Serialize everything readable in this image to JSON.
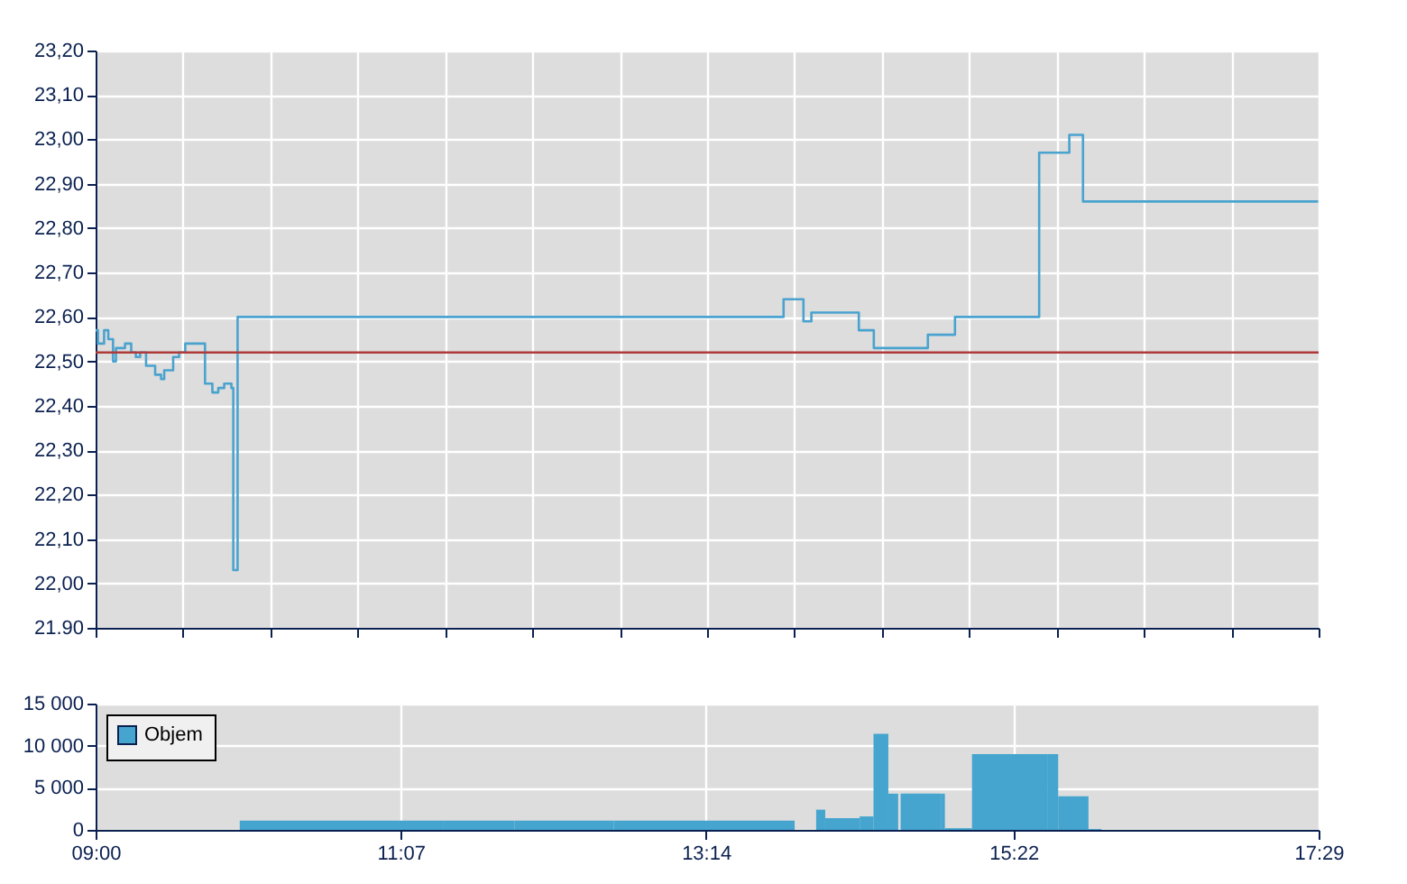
{
  "chart_data": [
    {
      "type": "step",
      "xlim": [
        9,
        17.4833
      ],
      "ylim": [
        21.9,
        23.2
      ],
      "xticks": [
        {
          "value": 9,
          "label": null
        },
        {
          "value": 9.606,
          "label": null
        },
        {
          "value": 10.212,
          "label": null
        },
        {
          "value": 10.818,
          "label": null
        },
        {
          "value": 11.424,
          "label": null
        },
        {
          "value": 12.03,
          "label": null
        },
        {
          "value": 12.636,
          "label": null
        },
        {
          "value": 13.242,
          "label": null
        },
        {
          "value": 13.848,
          "label": null
        },
        {
          "value": 14.454,
          "label": null
        },
        {
          "value": 15.06,
          "label": null
        },
        {
          "value": 15.665,
          "label": null
        },
        {
          "value": 16.271,
          "label": null
        },
        {
          "value": 16.877,
          "label": null
        },
        {
          "value": 17.4833,
          "label": null
        }
      ],
      "yticks": [
        {
          "value": 21.9,
          "label": "21.90"
        },
        {
          "value": 22.0,
          "label": "22,00"
        },
        {
          "value": 22.1,
          "label": "22,10"
        },
        {
          "value": 22.2,
          "label": "22,20"
        },
        {
          "value": 22.3,
          "label": "22,30"
        },
        {
          "value": 22.4,
          "label": "22,40"
        },
        {
          "value": 22.5,
          "label": "22,50"
        },
        {
          "value": 22.6,
          "label": "22,60"
        },
        {
          "value": 22.7,
          "label": "22,70"
        },
        {
          "value": 22.8,
          "label": "22,80"
        },
        {
          "value": 22.9,
          "label": "22,90"
        },
        {
          "value": 23.0,
          "label": "23,00"
        },
        {
          "value": 23.1,
          "label": "23,10"
        },
        {
          "value": 23.2,
          "label": "23,20"
        }
      ],
      "tick_labels": "y",
      "grid": true,
      "legend": false,
      "marker": "none",
      "line_style": "solid",
      "ref_lines": [
        {
          "axis": "y",
          "value": 22.52,
          "color": "#b03a3a"
        }
      ],
      "series": [
        {
          "color": "#4aa3cf",
          "x": [
            9.0,
            9.016,
            9.059,
            9.088,
            9.121,
            9.141,
            9.204,
            9.247,
            9.279,
            9.309,
            9.35,
            9.413,
            9.454,
            9.476,
            9.517,
            9.538,
            9.579,
            9.622,
            9.663,
            9.726,
            9.759,
            9.81,
            9.851,
            9.892,
            9.926,
            9.942,
            9.955,
            9.985,
            13.772,
            13.91,
            13.965,
            14.294,
            14.398,
            14.773,
            14.961,
            15.545,
            15.754,
            15.849,
            17.48
          ],
          "values": [
            22.57,
            22.54,
            22.57,
            22.55,
            22.5,
            22.53,
            22.54,
            22.52,
            22.51,
            22.52,
            22.49,
            22.47,
            22.46,
            22.48,
            22.48,
            22.51,
            22.52,
            22.54,
            22.54,
            22.54,
            22.45,
            22.43,
            22.44,
            22.45,
            22.45,
            22.44,
            22.03,
            22.6,
            22.64,
            22.59,
            22.61,
            22.57,
            22.53,
            22.56,
            22.6,
            22.97,
            23.01,
            22.86,
            22.86
          ]
        }
      ]
    },
    {
      "type": "histogram",
      "xlim": [
        9,
        17.4833
      ],
      "ylim": [
        0,
        15000
      ],
      "xticks": [
        {
          "value": 9,
          "label": "09:00"
        },
        {
          "value": 11.1167,
          "label": "11:07"
        },
        {
          "value": 13.2333,
          "label": "13:14"
        },
        {
          "value": 15.3667,
          "label": "15:22"
        },
        {
          "value": 17.4833,
          "label": "17:29"
        }
      ],
      "yticks": [
        0,
        {
          "value": 5000,
          "label": "5 000"
        },
        {
          "value": 10000,
          "label": "10 000"
        },
        {
          "value": 15000,
          "label": "15 000"
        }
      ],
      "grid": true,
      "legend": "top left",
      "bins": [
        10.0,
        11.409,
        11.905,
        12.593,
        13.849,
        13.998,
        14.061,
        14.3,
        14.396,
        14.499,
        14.567,
        14.584,
        14.863,
        14.891,
        15.079,
        15.601,
        15.677,
        15.887,
        15.977
      ],
      "series": [
        {
          "name": "Objem",
          "color": "#45a5cf",
          "values": [
            1100,
            1100,
            1100,
            1100,
            0,
            2400,
            1400,
            1600,
            11400,
            4300,
            0,
            4300,
            4300,
            200,
            9000,
            9000,
            4000,
            100
          ]
        }
      ]
    }
  ]
}
